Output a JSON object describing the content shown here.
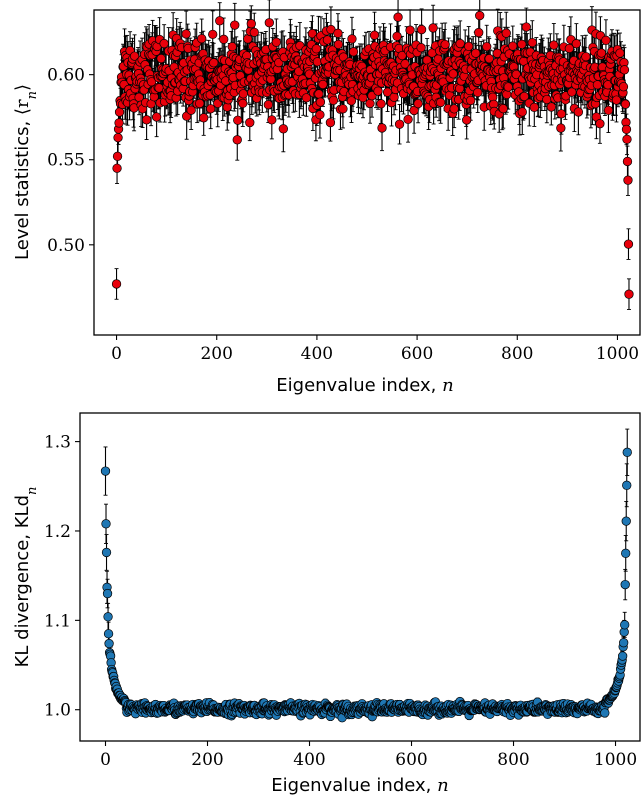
{
  "chart_data": [
    {
      "type": "scatter",
      "title": "",
      "xlabel": "Eigenvalue index, n",
      "xlabel_text": "Eigenvalue index, ",
      "xlabel_var": "n",
      "ylabel": "Level statistics, ⟨r_n⟩",
      "ylabel_text": "Level statistics, ",
      "ylabel_math": "⟨r",
      "ylabel_sub": "n",
      "ylabel_close": "⟩",
      "xlim": [
        -45,
        1045
      ],
      "ylim": [
        0.447,
        0.638
      ],
      "x_ticks": [
        0,
        200,
        400,
        600,
        800,
        1000
      ],
      "x_tick_labels": [
        "0",
        "200",
        "400",
        "600",
        "800",
        "1000"
      ],
      "y_ticks": [
        0.5,
        0.55,
        0.6
      ],
      "y_tick_labels": [
        "0.50",
        "0.55",
        "0.60"
      ],
      "marker_color": "#e8000b",
      "errorbar_color": "#000000",
      "n_points": 1024,
      "pattern": "edge points low, bulk fluctuating around 0.60 with error ~0.012",
      "bulk_mean": 0.6,
      "bulk_spread": 0.011,
      "error_bar": 0.012,
      "edge_points": [
        {
          "x": 0,
          "y": 0.477,
          "err": 0.009
        },
        {
          "x": 1,
          "y": 0.545,
          "err": 0.009
        },
        {
          "x": 2,
          "y": 0.552,
          "err": 0.009
        },
        {
          "x": 3,
          "y": 0.563,
          "err": 0.009
        },
        {
          "x": 4,
          "y": 0.568,
          "err": 0.009
        },
        {
          "x": 6,
          "y": 0.578,
          "err": 0.009
        },
        {
          "x": 8,
          "y": 0.583,
          "err": 0.009
        },
        {
          "x": 1015,
          "y": 0.583,
          "err": 0.009
        },
        {
          "x": 1017,
          "y": 0.572,
          "err": 0.009
        },
        {
          "x": 1019,
          "y": 0.562,
          "err": 0.009
        },
        {
          "x": 1020,
          "y": 0.549,
          "err": 0.009
        },
        {
          "x": 1021,
          "y": 0.538,
          "err": 0.009
        },
        {
          "x": 1023,
          "y": 0.471,
          "err": 0.009
        }
      ]
    },
    {
      "type": "scatter",
      "title": "",
      "xlabel": "Eigenvalue index, n",
      "xlabel_text": "Eigenvalue index, ",
      "xlabel_var": "n",
      "ylabel": "KL divergence, KLd_n",
      "ylabel_text": "KL divergence, KLd",
      "ylabel_sub": "n",
      "xlim": [
        -50,
        1048
      ],
      "ylim": [
        0.965,
        1.332
      ],
      "x_ticks": [
        0,
        200,
        400,
        600,
        800,
        1000
      ],
      "x_tick_labels": [
        "0",
        "200",
        "400",
        "600",
        "800",
        "1000"
      ],
      "y_ticks": [
        1.0,
        1.1,
        1.2,
        1.3
      ],
      "y_tick_labels": [
        "1.0",
        "1.1",
        "1.2",
        "1.3"
      ],
      "marker_color": "#1f77b4",
      "errorbar_color": "#000000",
      "n_points": 1024,
      "pattern": "U-shape: high at both edges, flat ~1.00 in bulk",
      "bulk_mean": 1.001,
      "bulk_spread": 0.003,
      "error_bar": 0.004,
      "edge_points": [
        {
          "x": 0,
          "y": 1.267,
          "err": 0.027
        },
        {
          "x": 1,
          "y": 1.208,
          "err": 0.022
        },
        {
          "x": 2,
          "y": 1.176,
          "err": 0.02
        },
        {
          "x": 3,
          "y": 1.137,
          "err": 0.018
        },
        {
          "x": 4,
          "y": 1.13,
          "err": 0.016
        },
        {
          "x": 5,
          "y": 1.104,
          "err": 0.015
        },
        {
          "x": 6,
          "y": 1.085,
          "err": 0.013
        },
        {
          "x": 7,
          "y": 1.074,
          "err": 0.012
        },
        {
          "x": 8,
          "y": 1.064,
          "err": 0.011
        },
        {
          "x": 10,
          "y": 1.06,
          "err": 0.01
        },
        {
          "x": 12,
          "y": 1.045,
          "err": 0.009
        },
        {
          "x": 15,
          "y": 1.037,
          "err": 0.008
        },
        {
          "x": 18,
          "y": 1.03,
          "err": 0.007
        },
        {
          "x": 22,
          "y": 1.022,
          "err": 0.006
        },
        {
          "x": 27,
          "y": 1.016,
          "err": 0.005
        },
        {
          "x": 33,
          "y": 1.011,
          "err": 0.005
        },
        {
          "x": 40,
          "y": 1.008,
          "err": 0.004
        },
        {
          "x": 980,
          "y": 1.008,
          "err": 0.004
        },
        {
          "x": 988,
          "y": 1.011,
          "err": 0.005
        },
        {
          "x": 995,
          "y": 1.016,
          "err": 0.005
        },
        {
          "x": 1000,
          "y": 1.022,
          "err": 0.006
        },
        {
          "x": 1004,
          "y": 1.03,
          "err": 0.007
        },
        {
          "x": 1008,
          "y": 1.037,
          "err": 0.008
        },
        {
          "x": 1011,
          "y": 1.05,
          "err": 0.009
        },
        {
          "x": 1014,
          "y": 1.06,
          "err": 0.01
        },
        {
          "x": 1016,
          "y": 1.075,
          "err": 0.012
        },
        {
          "x": 1018,
          "y": 1.095,
          "err": 0.014
        },
        {
          "x": 1019,
          "y": 1.14,
          "err": 0.017
        },
        {
          "x": 1020,
          "y": 1.175,
          "err": 0.02
        },
        {
          "x": 1021,
          "y": 1.211,
          "err": 0.022
        },
        {
          "x": 1023,
          "y": 1.288,
          "err": 0.026
        }
      ]
    }
  ]
}
